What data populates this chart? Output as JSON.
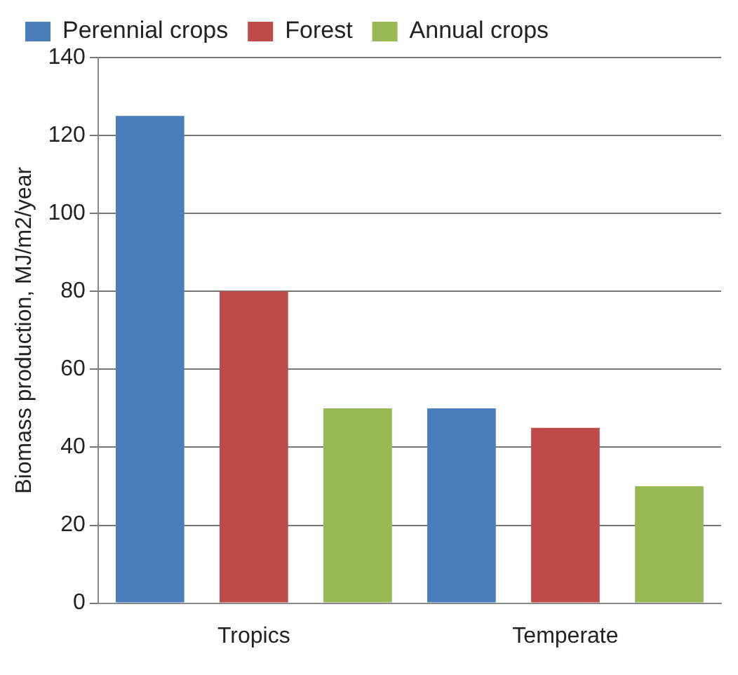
{
  "chart_data": {
    "type": "bar",
    "ylabel": "Biomass production, MJ/m2/year",
    "categories": [
      "Tropics",
      "Temperate"
    ],
    "series": [
      {
        "name": "Perennial crops",
        "color": "#4a7ebb",
        "values": [
          125,
          50
        ]
      },
      {
        "name": "Forest",
        "color": "#be4b48",
        "values": [
          80,
          45
        ]
      },
      {
        "name": "Annual crops",
        "color": "#98b954",
        "values": [
          50,
          30
        ]
      }
    ],
    "ylim": [
      0,
      140
    ],
    "yticks": [
      0,
      20,
      40,
      60,
      80,
      100,
      120,
      140
    ],
    "grid": "y",
    "legend": "top"
  }
}
